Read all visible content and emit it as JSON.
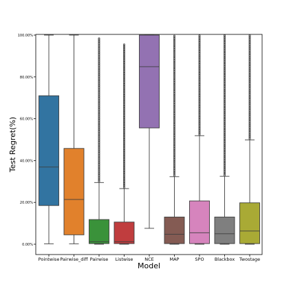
{
  "chart_data": {
    "type": "boxplot",
    "xlabel": "Model",
    "ylabel": "Test Regret(%)",
    "ylim": [
      0,
      100
    ],
    "yticks": [
      0,
      20,
      40,
      60,
      80,
      100
    ],
    "ytick_labels": [
      "0.00%",
      "20.00%",
      "40.00%",
      "60.00%",
      "80.00%",
      "100.00%"
    ],
    "grid": false,
    "series": [
      {
        "category": "Pointwise",
        "color": "#3274a1",
        "whisker_low": 0.2,
        "q1": 18.5,
        "median": 36.9,
        "q3": 71.0,
        "whisker_high": 100.0,
        "outliers_to": null
      },
      {
        "category": "Pairwise_diff",
        "color": "#e1812c",
        "whisker_low": 0.2,
        "q1": 4.5,
        "median": 21.4,
        "q3": 45.8,
        "whisker_high": 100.0,
        "outliers_to": null
      },
      {
        "category": "Pairwise",
        "color": "#3a923a",
        "whisker_low": 0.0,
        "q1": 0.3,
        "median": 1.2,
        "q3": 11.8,
        "whisker_high": 29.5,
        "outliers_to": 98.5
      },
      {
        "category": "Listwise",
        "color": "#c03d3e",
        "whisker_low": 0.0,
        "q1": 0.3,
        "median": 1.2,
        "q3": 10.6,
        "whisker_high": 26.6,
        "outliers_to": 96.0
      },
      {
        "category": "NCE",
        "color": "#9372b2",
        "whisker_low": 7.6,
        "q1": 55.6,
        "median": 84.9,
        "q3": 100.0,
        "whisker_high": 100.0,
        "outliers_to": null
      },
      {
        "category": "MAP",
        "color": "#845b53",
        "whisker_low": 0.0,
        "q1": 0.3,
        "median": 4.8,
        "q3": 13.0,
        "whisker_high": 32.3,
        "outliers_to": 100.0
      },
      {
        "category": "SPO",
        "color": "#d684bd",
        "whisker_low": 0.0,
        "q1": 0.3,
        "median": 5.5,
        "q3": 20.7,
        "whisker_high": 51.9,
        "outliers_to": 100.0
      },
      {
        "category": "Blackbox",
        "color": "#7f7f7f",
        "whisker_low": 0.0,
        "q1": 0.3,
        "median": 5.0,
        "q3": 13.0,
        "whisker_high": 32.5,
        "outliers_to": 100.0
      },
      {
        "category": "Twostage",
        "color": "#a9aa35",
        "whisker_low": 0.0,
        "q1": 0.3,
        "median": 6.3,
        "q3": 19.8,
        "whisker_high": 49.9,
        "outliers_to": 100.0
      }
    ]
  }
}
